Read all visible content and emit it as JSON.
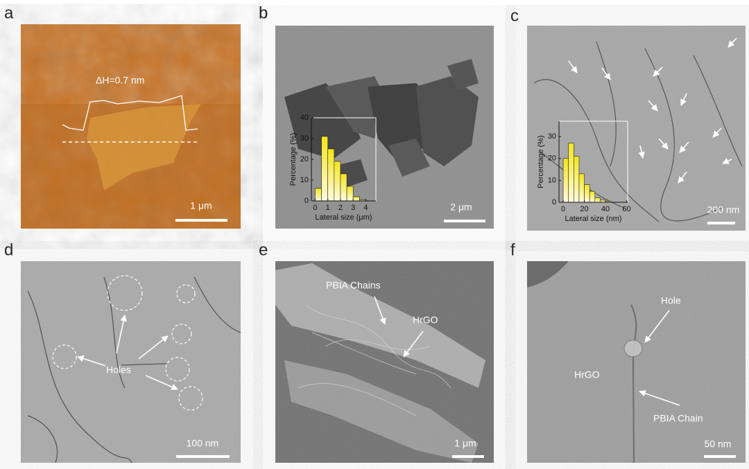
{
  "panels": [
    {
      "label": "a",
      "annotations": [
        "ΔH=0.7 nm"
      ],
      "scale_bar": "1 μm"
    },
    {
      "label": "b",
      "scale_bar": "2 μm"
    },
    {
      "label": "c",
      "scale_bar": "200 nm"
    },
    {
      "label": "d",
      "annotations": [
        "Holes"
      ],
      "scale_bar": "100 nm"
    },
    {
      "label": "e",
      "annotations": [
        "PBIA Chains",
        "HrGO"
      ],
      "scale_bar": "1 μm"
    },
    {
      "label": "f",
      "annotations": [
        "Hole",
        "HrGO",
        "PBIA Chain"
      ],
      "scale_bar": "50 nm"
    }
  ],
  "chart_data": [
    {
      "type": "histogram",
      "x_label": "Lateral size (μm)",
      "y_label": "Percentage (%)",
      "bins": [
        0,
        0.5,
        1,
        1.5,
        2,
        2.5,
        3,
        3.5,
        4
      ],
      "values": [
        6,
        31,
        25,
        19,
        13,
        7,
        2,
        0.5
      ],
      "xlim": [
        -0.3,
        4.8
      ],
      "ylim": [
        0,
        40
      ],
      "xticks": [
        0,
        1,
        2,
        3,
        4
      ],
      "yticks": [
        0,
        10,
        20,
        30,
        40
      ]
    },
    {
      "type": "histogram",
      "x_label": "Lateral size (nm)",
      "y_label": "Percentage (%)",
      "bins": [
        0,
        5,
        10,
        15,
        20,
        25,
        30,
        35,
        40,
        45
      ],
      "values": [
        20,
        27,
        21,
        13,
        8,
        5,
        2,
        1,
        0.5
      ],
      "xlim": [
        -4,
        61
      ],
      "ylim": [
        0,
        37
      ],
      "xticks": [
        0,
        20,
        40,
        60
      ],
      "yticks": [
        0,
        10,
        20,
        30
      ]
    }
  ]
}
